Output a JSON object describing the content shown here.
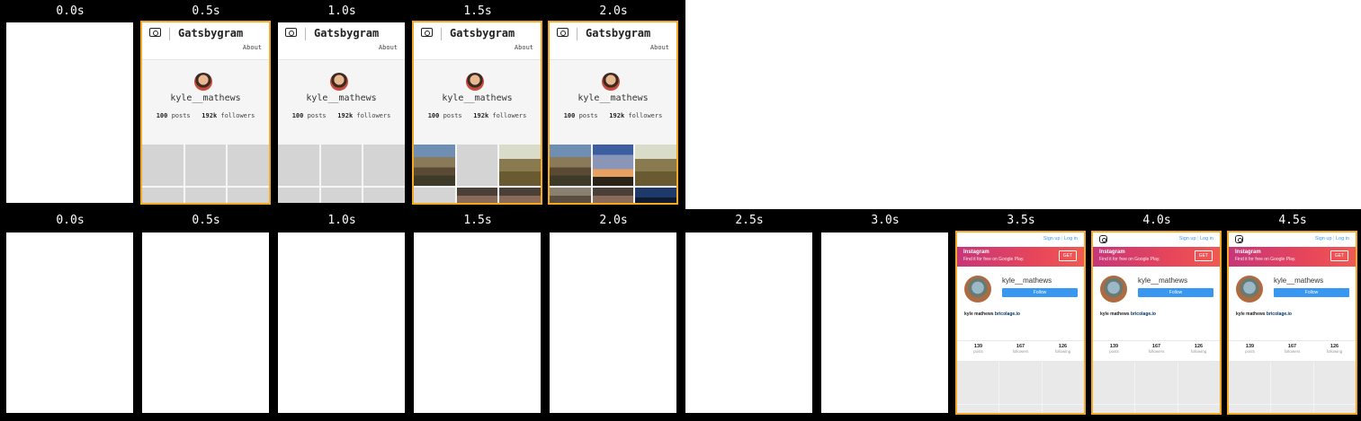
{
  "colors": {
    "background": "#000000",
    "highlight": "#f7a823"
  },
  "rows": [
    {
      "name": "gatsbygram",
      "frames": [
        {
          "time": "0.0s",
          "state": "blank",
          "changed": false
        },
        {
          "time": "0.5s",
          "state": "skeleton",
          "changed": true
        },
        {
          "time": "1.0s",
          "state": "skeleton",
          "changed": false
        },
        {
          "time": "1.5s",
          "state": "partial",
          "changed": true
        },
        {
          "time": "2.0s",
          "state": "complete",
          "changed": true
        }
      ]
    },
    {
      "name": "instagram",
      "frames": [
        {
          "time": "0.0s",
          "state": "blank",
          "changed": false
        },
        {
          "time": "0.5s",
          "state": "blank",
          "changed": false
        },
        {
          "time": "1.0s",
          "state": "blank",
          "changed": false
        },
        {
          "time": "1.5s",
          "state": "blank",
          "changed": false
        },
        {
          "time": "2.0s",
          "state": "blank",
          "changed": false
        },
        {
          "time": "2.5s",
          "state": "blank",
          "changed": false
        },
        {
          "time": "3.0s",
          "state": "blank",
          "changed": false
        },
        {
          "time": "3.5s",
          "state": "skeleton",
          "changed": true
        },
        {
          "time": "4.0s",
          "state": "partial",
          "changed": true
        },
        {
          "time": "4.5s",
          "state": "complete",
          "changed": true
        }
      ]
    }
  ],
  "gatsbygram": {
    "icon": "camera-icon",
    "title": "Gatsbygram",
    "about": "About",
    "username": "kyle__mathews",
    "posts_count": "100",
    "posts_label": "posts",
    "followers_count": "192k",
    "followers_label": "followers"
  },
  "instagram": {
    "icon": "instagram-logo-icon",
    "signup_link": "Sign up",
    "login_link": "Log in",
    "banner_title": "Instagram",
    "banner_subtitle": "Find it for free on Google Play.",
    "get_button": "GET",
    "username": "kyle__mathews",
    "follow_button": "Follow",
    "bio_name": "kyle mathews",
    "bio_link": "bricolage.io",
    "stats": [
      {
        "count": "139",
        "label": "posts"
      },
      {
        "count": "167",
        "label": "followers"
      },
      {
        "count": "126",
        "label": "following"
      }
    ],
    "signup_button": "Sign Up",
    "close_glyph": "×"
  }
}
